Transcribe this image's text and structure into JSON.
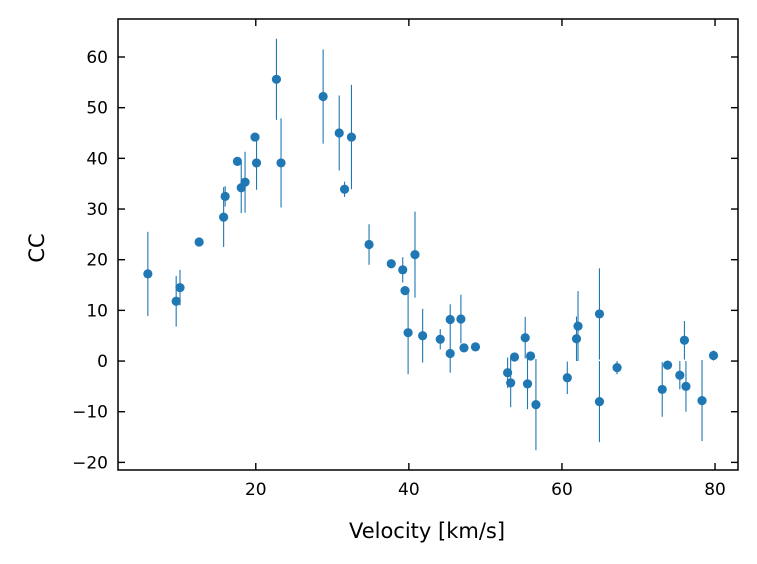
{
  "chart_data": {
    "type": "scatter",
    "title": "",
    "xlabel": "Velocity [km/s]",
    "ylabel": "CC",
    "xlim": [
      2,
      83
    ],
    "ylim": [
      -21.5,
      67.5
    ],
    "xticks": [
      20,
      40,
      60,
      80
    ],
    "yticks": [
      -20,
      -10,
      0,
      10,
      20,
      30,
      40,
      50,
      60
    ],
    "grid": false,
    "legend": null,
    "error_bars": true,
    "colors": {
      "marker": "#1f77b4",
      "errorbar": "#1f77b4",
      "axis": "#000000",
      "background": "#ffffff"
    },
    "points": [
      {
        "x": 5.9,
        "y": 17.2,
        "err": 8.3
      },
      {
        "x": 9.6,
        "y": 11.8,
        "err": 5.0
      },
      {
        "x": 10.1,
        "y": 14.5,
        "err": 3.5
      },
      {
        "x": 12.6,
        "y": 23.5,
        "err": 0.0
      },
      {
        "x": 15.8,
        "y": 28.4,
        "err": 5.9
      },
      {
        "x": 16.0,
        "y": 32.5,
        "err": 2.0
      },
      {
        "x": 17.6,
        "y": 39.4,
        "err": 0.0
      },
      {
        "x": 18.1,
        "y": 34.2,
        "err": 5.0
      },
      {
        "x": 18.6,
        "y": 35.3,
        "err": 6.0
      },
      {
        "x": 19.9,
        "y": 44.2,
        "err": 0.0
      },
      {
        "x": 20.1,
        "y": 39.1,
        "err": 5.3
      },
      {
        "x": 22.7,
        "y": 55.6,
        "err": 8.0
      },
      {
        "x": 23.3,
        "y": 39.1,
        "err": 8.8
      },
      {
        "x": 28.8,
        "y": 52.2,
        "err": 9.3
      },
      {
        "x": 30.9,
        "y": 45.0,
        "err": 7.4
      },
      {
        "x": 31.6,
        "y": 33.9,
        "err": 1.5
      },
      {
        "x": 32.5,
        "y": 44.2,
        "err": 10.3
      },
      {
        "x": 34.8,
        "y": 23.0,
        "err": 4.0
      },
      {
        "x": 37.7,
        "y": 19.2,
        "err": 0.0
      },
      {
        "x": 39.2,
        "y": 18.0,
        "err": 2.5
      },
      {
        "x": 39.5,
        "y": 13.9,
        "err": 0.0
      },
      {
        "x": 39.9,
        "y": 5.6,
        "err": 8.2
      },
      {
        "x": 40.8,
        "y": 21.0,
        "err": 8.5
      },
      {
        "x": 41.8,
        "y": 5.0,
        "err": 5.3
      },
      {
        "x": 44.1,
        "y": 4.3,
        "err": 2.0
      },
      {
        "x": 45.4,
        "y": 8.2,
        "err": 3.0
      },
      {
        "x": 45.4,
        "y": 1.5,
        "err": 3.8
      },
      {
        "x": 46.8,
        "y": 8.3,
        "err": 4.8
      },
      {
        "x": 47.2,
        "y": 2.6,
        "err": 0.0
      },
      {
        "x": 48.7,
        "y": 2.8,
        "err": 0.0
      },
      {
        "x": 52.9,
        "y": -2.3,
        "err": 3.0
      },
      {
        "x": 53.3,
        "y": -4.3,
        "err": 4.8
      },
      {
        "x": 53.8,
        "y": 0.8,
        "err": 0.0
      },
      {
        "x": 55.2,
        "y": 4.6,
        "err": 4.1
      },
      {
        "x": 55.5,
        "y": -4.5,
        "err": 5.0
      },
      {
        "x": 55.9,
        "y": 1.0,
        "err": 0.0
      },
      {
        "x": 56.6,
        "y": -8.6,
        "err": 9.0
      },
      {
        "x": 60.7,
        "y": -3.3,
        "err": 3.2
      },
      {
        "x": 61.9,
        "y": 4.4,
        "err": 4.4
      },
      {
        "x": 62.1,
        "y": 6.9,
        "err": 6.9
      },
      {
        "x": 64.9,
        "y": 9.3,
        "err": 9.0
      },
      {
        "x": 64.9,
        "y": -8.0,
        "err": 8.0
      },
      {
        "x": 67.2,
        "y": -1.3,
        "err": 1.3
      },
      {
        "x": 73.1,
        "y": -5.6,
        "err": 5.4
      },
      {
        "x": 73.8,
        "y": -0.8,
        "err": 0.0
      },
      {
        "x": 75.4,
        "y": -2.8,
        "err": 2.8
      },
      {
        "x": 76.0,
        "y": 4.1,
        "err": 3.8
      },
      {
        "x": 76.2,
        "y": -5.0,
        "err": 5.0
      },
      {
        "x": 78.3,
        "y": -7.8,
        "err": 8.0
      },
      {
        "x": 79.8,
        "y": 1.1,
        "err": 1.0
      }
    ]
  }
}
